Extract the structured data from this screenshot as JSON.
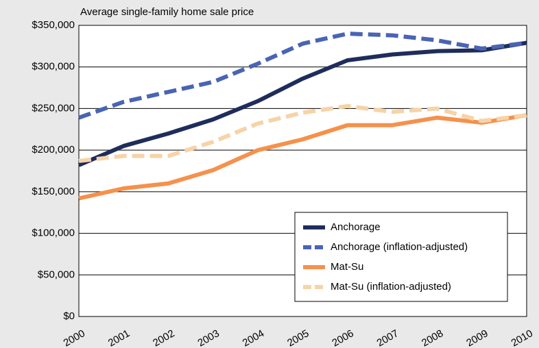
{
  "chart_data": {
    "type": "line",
    "title": "Average single-family home sale price",
    "categories": [
      "2000",
      "2001",
      "2002",
      "2003",
      "2004",
      "2005",
      "2006",
      "2007",
      "2008",
      "2009",
      "2010"
    ],
    "series": [
      {
        "name": "Anchorage",
        "color": "#1f2d5c",
        "dashed": false,
        "values": [
          182000,
          205000,
          220000,
          237000,
          259000,
          286000,
          308000,
          315000,
          319000,
          320000,
          329000
        ]
      },
      {
        "name": "Anchorage (inflation-adjusted)",
        "color": "#4a64b4",
        "dashed": true,
        "values": [
          239000,
          258000,
          270000,
          282000,
          304000,
          328000,
          340000,
          338000,
          332000,
          322000,
          329000
        ]
      },
      {
        "name": "Mat-Su",
        "color": "#f5914c",
        "dashed": false,
        "values": [
          142000,
          154000,
          160000,
          176000,
          200000,
          213000,
          230000,
          230000,
          239000,
          233000,
          242000
        ]
      },
      {
        "name": "Mat-Su (inflation-adjusted)",
        "color": "#f7d3a8",
        "dashed": true,
        "values": [
          187000,
          193000,
          193000,
          210000,
          232000,
          245000,
          253000,
          246000,
          250000,
          235000,
          242000
        ]
      }
    ],
    "ylim": [
      0,
      350000
    ],
    "yticks": [
      {
        "value": 0,
        "label": "$0"
      },
      {
        "value": 50000,
        "label": "$50,000"
      },
      {
        "value": 100000,
        "label": "$100,000"
      },
      {
        "value": 150000,
        "label": "$150,000"
      },
      {
        "value": 200000,
        "label": "$200,000"
      },
      {
        "value": 250000,
        "label": "$250,000"
      },
      {
        "value": 300000,
        "label": "$300,000"
      },
      {
        "value": 350000,
        "label": "$350,000"
      }
    ],
    "grid": true,
    "legend": "lower right"
  }
}
